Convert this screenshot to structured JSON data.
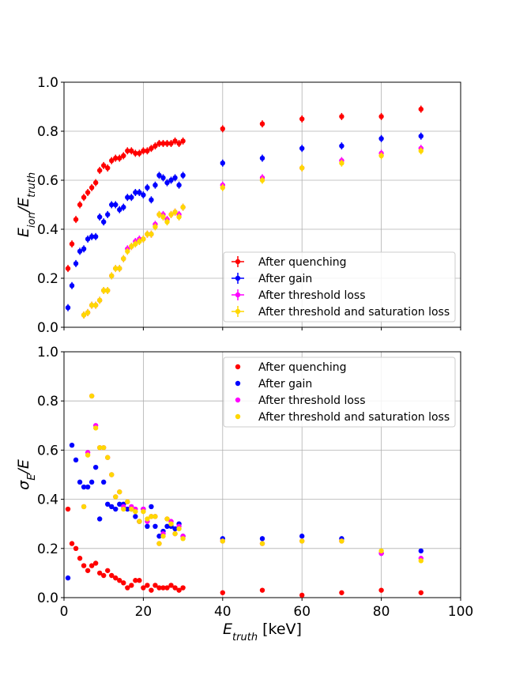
{
  "colors": {
    "quenching": "#ff0000",
    "gain": "#0000ff",
    "threshold": "#ff00ff",
    "saturation": "#ffd700",
    "grid": "#b0b0b0"
  },
  "chart_data": [
    {
      "type": "scatter",
      "ylabel_base": "E",
      "ylabel_sub1": "ion",
      "ylabel_slash": "/E",
      "ylabel_sub2": "truth",
      "xlim": [
        0,
        100
      ],
      "ylim": [
        0,
        1.0
      ],
      "xticks": [
        0,
        20,
        40,
        60,
        80,
        100
      ],
      "yticks": [
        "0.0",
        "0.2",
        "0.4",
        "0.6",
        "0.8",
        "1.0"
      ],
      "grid": true,
      "error_bars": true,
      "legend_position": "lower-right",
      "series": [
        {
          "name": "After quenching",
          "x": [
            1,
            2,
            3,
            4,
            5,
            6,
            7,
            8,
            9,
            10,
            11,
            12,
            13,
            14,
            15,
            16,
            17,
            18,
            19,
            20,
            21,
            22,
            23,
            24,
            25,
            26,
            27,
            28,
            29,
            30,
            40,
            50,
            60,
            70,
            80,
            90
          ],
          "y": [
            0.24,
            0.34,
            0.44,
            0.5,
            0.53,
            0.55,
            0.57,
            0.59,
            0.64,
            0.66,
            0.65,
            0.68,
            0.69,
            0.69,
            0.7,
            0.72,
            0.72,
            0.71,
            0.71,
            0.72,
            0.72,
            0.73,
            0.74,
            0.75,
            0.75,
            0.75,
            0.75,
            0.76,
            0.75,
            0.76,
            0.81,
            0.83,
            0.85,
            0.86,
            0.86,
            0.89
          ]
        },
        {
          "name": "After gain",
          "x": [
            1,
            2,
            3,
            4,
            5,
            6,
            7,
            8,
            9,
            10,
            11,
            12,
            13,
            14,
            15,
            16,
            17,
            18,
            19,
            20,
            21,
            22,
            23,
            24,
            25,
            26,
            27,
            28,
            29,
            30,
            40,
            50,
            60,
            70,
            80,
            90
          ],
          "y": [
            0.08,
            0.17,
            0.26,
            0.31,
            0.32,
            0.36,
            0.37,
            0.37,
            0.45,
            0.43,
            0.46,
            0.5,
            0.5,
            0.48,
            0.49,
            0.53,
            0.53,
            0.55,
            0.55,
            0.54,
            0.57,
            0.52,
            0.58,
            0.62,
            0.61,
            0.59,
            0.6,
            0.61,
            0.58,
            0.62,
            0.67,
            0.69,
            0.73,
            0.74,
            0.77,
            0.78
          ]
        },
        {
          "name": "After threshold loss",
          "x": [
            5,
            6,
            7,
            8,
            9,
            10,
            11,
            12,
            13,
            14,
            15,
            16,
            17,
            18,
            19,
            20,
            21,
            22,
            23,
            24,
            25,
            26,
            27,
            28,
            29,
            30,
            40,
            50,
            60,
            70,
            80,
            90
          ],
          "y": [
            0.05,
            0.06,
            0.09,
            0.09,
            0.11,
            0.15,
            0.15,
            0.21,
            0.24,
            0.24,
            0.28,
            0.32,
            0.33,
            0.35,
            0.36,
            0.36,
            0.38,
            0.38,
            0.42,
            0.46,
            0.46,
            0.44,
            0.46,
            0.47,
            0.46,
            0.49,
            0.58,
            0.61,
            0.65,
            0.68,
            0.71,
            0.73
          ]
        },
        {
          "name": "After threshold and saturation loss",
          "x": [
            5,
            6,
            7,
            8,
            9,
            10,
            11,
            12,
            13,
            14,
            15,
            16,
            17,
            18,
            19,
            20,
            21,
            22,
            23,
            24,
            25,
            26,
            27,
            28,
            29,
            30,
            40,
            50,
            60,
            70,
            80,
            90
          ],
          "y": [
            0.05,
            0.06,
            0.09,
            0.09,
            0.11,
            0.15,
            0.15,
            0.21,
            0.24,
            0.24,
            0.28,
            0.31,
            0.33,
            0.34,
            0.35,
            0.36,
            0.38,
            0.38,
            0.41,
            0.46,
            0.45,
            0.43,
            0.46,
            0.47,
            0.45,
            0.49,
            0.57,
            0.6,
            0.65,
            0.67,
            0.7,
            0.72
          ]
        }
      ]
    },
    {
      "type": "scatter",
      "ylabel_base": "σ",
      "ylabel_sub1": "E",
      "ylabel_slash": "/E",
      "ylabel_sub2": "",
      "xlabel_base": "E",
      "xlabel_sub": "truth",
      "xlabel_unit": " [keV]",
      "xlim": [
        0,
        100
      ],
      "ylim": [
        0,
        1.0
      ],
      "xticks": [
        0,
        20,
        40,
        60,
        80,
        100
      ],
      "yticks": [
        "0.0",
        "0.2",
        "0.4",
        "0.6",
        "0.8",
        "1.0"
      ],
      "grid": true,
      "error_bars": false,
      "legend_position": "upper-right",
      "series": [
        {
          "name": "After quenching",
          "x": [
            1,
            2,
            3,
            4,
            5,
            6,
            7,
            8,
            9,
            10,
            11,
            12,
            13,
            14,
            15,
            16,
            17,
            18,
            19,
            20,
            21,
            22,
            23,
            24,
            25,
            26,
            27,
            28,
            29,
            30,
            40,
            50,
            60,
            70,
            80,
            90
          ],
          "y": [
            0.36,
            0.22,
            0.2,
            0.16,
            0.13,
            0.11,
            0.13,
            0.14,
            0.1,
            0.09,
            0.11,
            0.09,
            0.08,
            0.07,
            0.06,
            0.04,
            0.05,
            0.07,
            0.07,
            0.04,
            0.05,
            0.03,
            0.05,
            0.04,
            0.04,
            0.04,
            0.05,
            0.04,
            0.03,
            0.04,
            0.02,
            0.03,
            0.01,
            0.02,
            0.03,
            0.02
          ]
        },
        {
          "name": "After gain",
          "x": [
            1,
            2,
            3,
            4,
            5,
            6,
            7,
            8,
            9,
            10,
            11,
            12,
            13,
            14,
            15,
            16,
            17,
            18,
            19,
            20,
            21,
            22,
            23,
            24,
            25,
            26,
            27,
            28,
            29,
            30,
            40,
            50,
            60,
            70,
            80,
            90
          ],
          "y": [
            0.08,
            0.62,
            0.56,
            0.47,
            0.45,
            0.45,
            0.47,
            0.53,
            0.32,
            0.47,
            0.38,
            0.37,
            0.36,
            0.38,
            0.38,
            0.36,
            0.36,
            0.33,
            0.31,
            0.36,
            0.29,
            0.37,
            0.29,
            0.25,
            0.27,
            0.29,
            0.29,
            0.28,
            0.3,
            0.25,
            0.24,
            0.24,
            0.25,
            0.24,
            0.18,
            0.19
          ]
        },
        {
          "name": "After threshold loss",
          "x": [
            5,
            6,
            7,
            8,
            9,
            10,
            11,
            12,
            13,
            14,
            15,
            16,
            17,
            18,
            19,
            20,
            21,
            22,
            23,
            24,
            25,
            26,
            27,
            28,
            29,
            30,
            40,
            50,
            60,
            70,
            80,
            90
          ],
          "y": [
            0.37,
            0.59,
            0.82,
            0.7,
            0.61,
            0.61,
            0.57,
            0.5,
            0.41,
            0.43,
            0.37,
            0.39,
            0.37,
            0.36,
            0.31,
            0.36,
            0.31,
            0.33,
            0.33,
            0.22,
            0.26,
            0.32,
            0.31,
            0.26,
            0.29,
            0.25,
            0.23,
            0.22,
            0.23,
            0.23,
            0.18,
            0.16
          ]
        },
        {
          "name": "After threshold and saturation loss",
          "x": [
            5,
            6,
            7,
            8,
            9,
            10,
            11,
            12,
            13,
            14,
            15,
            16,
            17,
            18,
            19,
            20,
            21,
            22,
            23,
            24,
            25,
            26,
            27,
            28,
            29,
            30,
            40,
            50,
            60,
            70,
            80,
            90
          ],
          "y": [
            0.37,
            0.58,
            0.82,
            0.69,
            0.61,
            0.61,
            0.57,
            0.5,
            0.41,
            0.43,
            0.36,
            0.39,
            0.36,
            0.35,
            0.31,
            0.35,
            0.32,
            0.33,
            0.33,
            0.22,
            0.25,
            0.32,
            0.3,
            0.26,
            0.28,
            0.24,
            0.23,
            0.22,
            0.23,
            0.23,
            0.19,
            0.15
          ]
        }
      ]
    }
  ]
}
